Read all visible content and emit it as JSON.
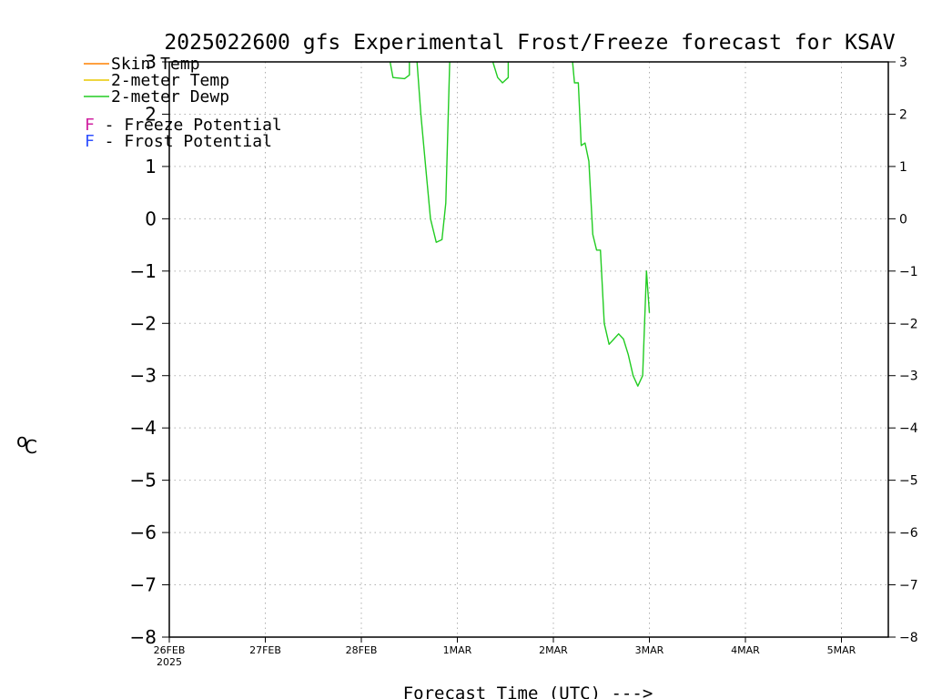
{
  "chart_data": {
    "type": "line",
    "title": "2025022600 gfs Experimental Frost/Freeze forecast for KSAV",
    "xlabel": "Forecast Time (UTC) --->",
    "ylabel": "°C",
    "ylabel_degree": "o",
    "ylabel_unit": "C",
    "ylim": [
      -8,
      3
    ],
    "yticks": [
      3,
      2,
      1,
      0,
      -1,
      -2,
      -3,
      -4,
      -5,
      -6,
      -7,
      -8
    ],
    "yticklabels_left": [
      "3",
      "2",
      "1",
      "0",
      "−1",
      "−2",
      "−3",
      "−4",
      "−5",
      "−6",
      "−7",
      "−8"
    ],
    "yticklabels_right": [
      "3",
      "2",
      "1",
      "0",
      "−1",
      "−2",
      "−3",
      "−4",
      "−5",
      "−6",
      "−7",
      "−8"
    ],
    "xlim_days": [
      0,
      7.5
    ],
    "xticks": [
      {
        "day": 0,
        "label": "26FEB",
        "sublabel": "2025"
      },
      {
        "day": 1,
        "label": "27FEB"
      },
      {
        "day": 2,
        "label": "28FEB"
      },
      {
        "day": 3,
        "label": "1MAR"
      },
      {
        "day": 4,
        "label": "2MAR"
      },
      {
        "day": 5,
        "label": "3MAR"
      },
      {
        "day": 6,
        "label": "4MAR"
      },
      {
        "day": 7,
        "label": "5MAR"
      }
    ],
    "grid": true,
    "legend_position": "top-left",
    "legend": [
      {
        "name": "Skin Temp",
        "color": "#ff8000"
      },
      {
        "name": "2-meter Temp",
        "color": "#e8c800"
      },
      {
        "name": "2-meter Dewp",
        "color": "#22cc22"
      }
    ],
    "potential_legend": [
      {
        "symbol": "F",
        "text": " - Freeze Potential",
        "color": "#d020a0"
      },
      {
        "symbol": "F",
        "text": " - Frost Potential",
        "color": "#3050ff"
      }
    ],
    "series": [
      {
        "name": "2-meter Dewp",
        "color": "#22cc22",
        "segments": [
          [
            [
              2.3,
              3.0
            ],
            [
              2.33,
              2.7
            ],
            [
              2.45,
              2.68
            ],
            [
              2.5,
              2.75
            ],
            [
              2.5,
              3.0
            ]
          ],
          [
            [
              2.58,
              3.0
            ],
            [
              2.62,
              2.0
            ],
            [
              2.68,
              0.8
            ],
            [
              2.72,
              0.0
            ],
            [
              2.78,
              -0.45
            ],
            [
              2.84,
              -0.4
            ],
            [
              2.88,
              0.3
            ],
            [
              2.92,
              3.0
            ]
          ],
          [
            [
              3.37,
              3.0
            ],
            [
              3.42,
              2.7
            ],
            [
              3.47,
              2.6
            ],
            [
              3.53,
              2.7
            ],
            [
              3.53,
              3.0
            ]
          ],
          [
            [
              4.2,
              3.0
            ],
            [
              4.22,
              2.6
            ],
            [
              4.26,
              2.6
            ],
            [
              4.29,
              1.4
            ],
            [
              4.33,
              1.45
            ],
            [
              4.37,
              1.1
            ],
            [
              4.41,
              -0.3
            ],
            [
              4.45,
              -0.6
            ],
            [
              4.48,
              -0.6
            ],
            [
              4.49,
              -0.6
            ],
            [
              4.53,
              -2.0
            ],
            [
              4.58,
              -2.4
            ],
            [
              4.63,
              -2.3
            ],
            [
              4.68,
              -2.2
            ],
            [
              4.73,
              -2.3
            ],
            [
              4.78,
              -2.6
            ],
            [
              4.83,
              -3.0
            ],
            [
              4.88,
              -3.2
            ],
            [
              4.93,
              -3.0
            ],
            [
              4.97,
              -1.0
            ],
            [
              5.0,
              -1.8
            ]
          ]
        ]
      }
    ]
  }
}
